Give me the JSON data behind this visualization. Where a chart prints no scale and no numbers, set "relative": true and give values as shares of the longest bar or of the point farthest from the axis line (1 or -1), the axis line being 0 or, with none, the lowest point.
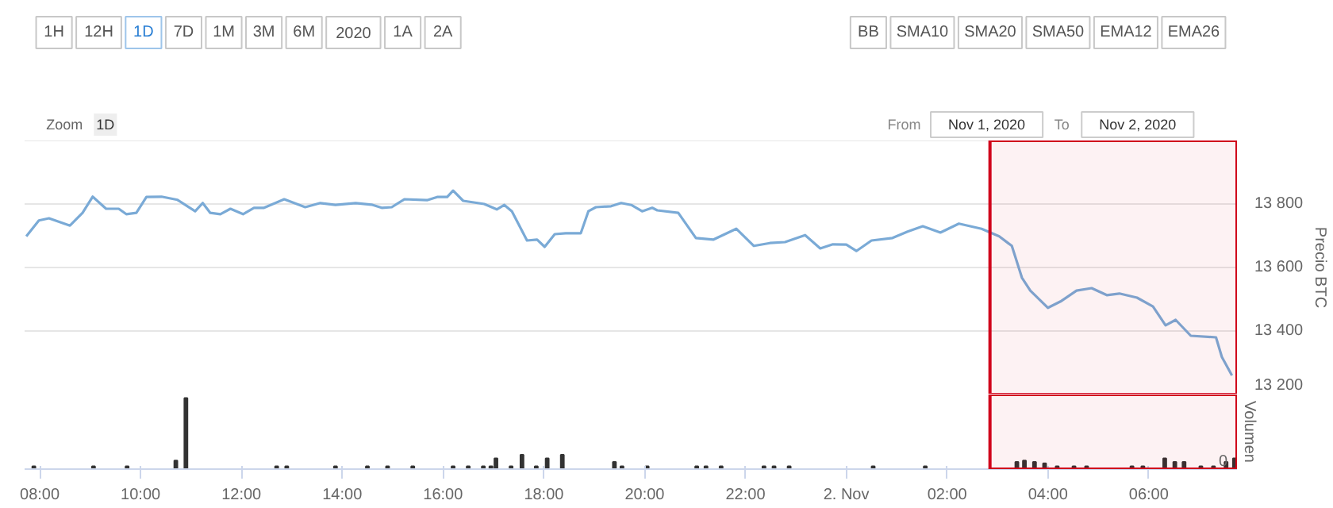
{
  "chart_data": [
    {
      "type": "line",
      "ylabel": "Precio BTC",
      "annotations": [
        "1H",
        "12H",
        "1D",
        "7D",
        "1M",
        "3M",
        "6M",
        "2020",
        "1A",
        "2A",
        "BB",
        "SMA10",
        "SMA20",
        "SMA50",
        "EMA12",
        "EMA26",
        "Zoom",
        "1D",
        "From",
        "Nov 1, 2020",
        "To",
        "Nov 2, 2020"
      ],
      "xlim": [
        "2020-11-01T07:42",
        "2020-11-02T07:45"
      ],
      "ylim": [
        13200,
        14000
      ],
      "yticks": [
        {
          "value": 13200,
          "label": "13 200"
        },
        {
          "value": 13400,
          "label": "13 400"
        },
        {
          "value": 13600,
          "label": "13 600"
        },
        {
          "value": 13800,
          "label": "13 800"
        }
      ],
      "tick_labels": "y",
      "grid": "y",
      "marker": "none",
      "line_style": "solid",
      "bands": [
        {
          "axis": "x",
          "from": "2020-11-02T02:51",
          "to": "2020-11-02T07:45",
          "color": "#d0021b"
        }
      ],
      "series": [
        {
          "color": "#7aaad6",
          "x": [
            "2020-11-01T07:44",
            "2020-11-01T07:59",
            "2020-11-01T08:11",
            "2020-11-01T08:36",
            "2020-11-01T08:51",
            "2020-11-01T09:03",
            "2020-11-01T09:19",
            "2020-11-01T09:34",
            "2020-11-01T09:43",
            "2020-11-01T09:55",
            "2020-11-01T10:07",
            "2020-11-01T10:25",
            "2020-11-01T10:44",
            "2020-11-01T11:05",
            "2020-11-01T11:14",
            "2020-11-01T11:23",
            "2020-11-01T11:35",
            "2020-11-01T11:47",
            "2020-11-01T12:02",
            "2020-11-01T12:15",
            "2020-11-01T12:27",
            "2020-11-01T12:51",
            "2020-11-01T13:16",
            "2020-11-01T13:34",
            "2020-11-01T13:52",
            "2020-11-01T14:16",
            "2020-11-01T14:35",
            "2020-11-01T14:47",
            "2020-11-01T14:59",
            "2020-11-01T15:14",
            "2020-11-01T15:41",
            "2020-11-01T15:53",
            "2020-11-01T16:05",
            "2020-11-01T16:12",
            "2020-11-01T16:24",
            "2020-11-01T16:49",
            "2020-11-01T17:04",
            "2020-11-01T17:13",
            "2020-11-01T17:22",
            "2020-11-01T17:40",
            "2020-11-01T17:52",
            "2020-11-01T18:01",
            "2020-11-01T18:13",
            "2020-11-01T18:26",
            "2020-11-01T18:44",
            "2020-11-01T18:53",
            "2020-11-01T19:02",
            "2020-11-01T19:20",
            "2020-11-01T19:32",
            "2020-11-01T19:44",
            "2020-11-01T19:57",
            "2020-11-01T20:09",
            "2020-11-01T20:15",
            "2020-11-01T20:40",
            "2020-11-01T21:01",
            "2020-11-01T21:22",
            "2020-11-01T21:49",
            "2020-11-01T22:10",
            "2020-11-01T22:29",
            "2020-11-01T22:47",
            "2020-11-01T23:11",
            "2020-11-01T23:29",
            "2020-11-01T23:44",
            "2020-11-02T00:00",
            "2020-11-02T00:12",
            "2020-11-02T00:30",
            "2020-11-02T00:55",
            "2020-11-02T01:13",
            "2020-11-02T01:31",
            "2020-11-02T01:52",
            "2020-11-02T02:14",
            "2020-11-02T02:41",
            "2020-11-02T03:02",
            "2020-11-02T03:17",
            "2020-11-02T03:29",
            "2020-11-02T03:39",
            "2020-11-02T04:00",
            "2020-11-02T04:15",
            "2020-11-02T04:34",
            "2020-11-02T04:52",
            "2020-11-02T05:10",
            "2020-11-02T05:25",
            "2020-11-02T05:46",
            "2020-11-02T06:05",
            "2020-11-02T06:20",
            "2020-11-02T06:32",
            "2020-11-02T06:50",
            "2020-11-02T07:20",
            "2020-11-02T07:27",
            "2020-11-02T07:39"
          ],
          "values": [
            13698,
            13748,
            13755,
            13732,
            13772,
            13823,
            13785,
            13785,
            13768,
            13772,
            13822,
            13823,
            13813,
            13777,
            13803,
            13772,
            13768,
            13785,
            13768,
            13788,
            13788,
            13815,
            13790,
            13803,
            13797,
            13803,
            13798,
            13788,
            13790,
            13815,
            13812,
            13822,
            13822,
            13842,
            13810,
            13800,
            13783,
            13797,
            13777,
            13685,
            13688,
            13665,
            13705,
            13708,
            13708,
            13777,
            13790,
            13793,
            13803,
            13797,
            13777,
            13788,
            13780,
            13772,
            13693,
            13688,
            13722,
            13668,
            13677,
            13680,
            13702,
            13660,
            13673,
            13672,
            13652,
            13685,
            13693,
            13713,
            13730,
            13710,
            13738,
            13722,
            13698,
            13668,
            13568,
            13527,
            13473,
            13493,
            13527,
            13535,
            13513,
            13518,
            13505,
            13477,
            13418,
            13435,
            13385,
            13380,
            13318,
            13260
          ]
        }
      ]
    },
    {
      "type": "bar",
      "relative": true,
      "ylabel": "Volumen",
      "annotations": [
        "0"
      ],
      "xlim": [
        "2020-11-01T07:42",
        "2020-11-02T07:45"
      ],
      "xticks": [
        {
          "value": "2020-11-01T08:00",
          "label": "08:00"
        },
        {
          "value": "2020-11-01T10:00",
          "label": "10:00"
        },
        {
          "value": "2020-11-01T12:00",
          "label": "12:00"
        },
        {
          "value": "2020-11-01T14:00",
          "label": "14:00"
        },
        {
          "value": "2020-11-01T16:00",
          "label": "16:00"
        },
        {
          "value": "2020-11-01T18:00",
          "label": "18:00"
        },
        {
          "value": "2020-11-01T20:00",
          "label": "20:00"
        },
        {
          "value": "2020-11-01T22:00",
          "label": "22:00"
        },
        {
          "value": "2020-11-02T00:00",
          "label": "2. Nov"
        },
        {
          "value": "2020-11-02T02:00",
          "label": "02:00"
        },
        {
          "value": "2020-11-02T04:00",
          "label": "04:00"
        },
        {
          "value": "2020-11-02T06:00",
          "label": "06:00"
        }
      ],
      "tick_labels": "x",
      "bands": [
        {
          "axis": "x",
          "from": "2020-11-02T02:51",
          "to": "2020-11-02T07:45",
          "color": "#d0021b"
        }
      ],
      "series": [
        {
          "color": "#333333",
          "x": [
            "2020-11-01T07:53",
            "2020-11-01T09:04",
            "2020-11-01T09:44",
            "2020-11-01T10:42",
            "2020-11-01T10:54",
            "2020-11-01T12:42",
            "2020-11-01T12:54",
            "2020-11-01T13:52",
            "2020-11-01T14:30",
            "2020-11-01T14:54",
            "2020-11-01T15:24",
            "2020-11-01T16:12",
            "2020-11-01T16:30",
            "2020-11-01T16:48",
            "2020-11-01T16:57",
            "2020-11-01T17:03",
            "2020-11-01T17:21",
            "2020-11-01T17:34",
            "2020-11-01T17:51",
            "2020-11-01T18:04",
            "2020-11-01T18:22",
            "2020-11-01T19:24",
            "2020-11-01T19:33",
            "2020-11-01T20:03",
            "2020-11-01T21:02",
            "2020-11-01T21:13",
            "2020-11-01T21:31",
            "2020-11-01T22:22",
            "2020-11-01T22:34",
            "2020-11-01T22:52",
            "2020-11-02T00:32",
            "2020-11-02T01:34",
            "2020-11-02T03:23",
            "2020-11-02T03:32",
            "2020-11-02T03:44",
            "2020-11-02T03:56",
            "2020-11-02T04:11",
            "2020-11-02T04:31",
            "2020-11-02T04:46",
            "2020-11-02T05:40",
            "2020-11-02T05:53",
            "2020-11-02T06:19",
            "2020-11-02T06:31",
            "2020-11-02T06:42",
            "2020-11-02T07:02",
            "2020-11-02T07:17",
            "2020-11-02T07:32",
            "2020-11-02T07:42"
          ],
          "values": [
            0.04,
            0.04,
            0.04,
            0.12,
            1,
            0.04,
            0.04,
            0.04,
            0.04,
            0.04,
            0.04,
            0.04,
            0.04,
            0.04,
            0.04,
            0.15,
            0.04,
            0.2,
            0.04,
            0.15,
            0.2,
            0.1,
            0.04,
            0.04,
            0.04,
            0.04,
            0.04,
            0.04,
            0.04,
            0.04,
            0.04,
            0.04,
            0.1,
            0.12,
            0.1,
            0.08,
            0.04,
            0.04,
            0.04,
            0.04,
            0.04,
            0.15,
            0.1,
            0.1,
            0.04,
            0.04,
            0.1,
            0.15
          ]
        }
      ]
    }
  ]
}
